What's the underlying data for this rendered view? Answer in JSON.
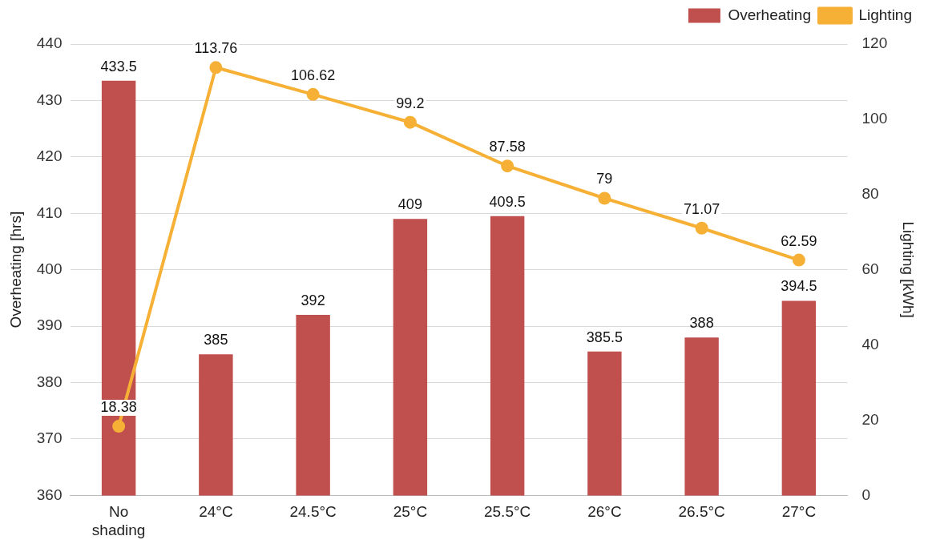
{
  "chart_data": {
    "type": "bar",
    "ylabel": "Overheating [hrs]",
    "y2label": "Lighting [kWh]",
    "categories": [
      "No shading",
      "24°C",
      "24.5°C",
      "25°C",
      "25.5°C",
      "26°C",
      "26.5°C",
      "27°C"
    ],
    "series": [
      {
        "name": "Overheating",
        "color": "#c0504d",
        "values": [
          433.5,
          385,
          392,
          409,
          409.5,
          385.5,
          388,
          394.5
        ]
      },
      {
        "name": "Lighting",
        "type": "line",
        "axis": "y2",
        "color": "#f5b035",
        "marker": "circle",
        "values": [
          18.38,
          113.76,
          106.62,
          99.2,
          87.58,
          79,
          71.07,
          62.59
        ]
      }
    ],
    "ylim": [
      360,
      440
    ],
    "yticks": [
      360,
      370,
      380,
      390,
      400,
      410,
      420,
      430,
      440
    ],
    "y2lim": [
      0,
      120
    ],
    "y2ticks": [
      0,
      20,
      40,
      60,
      80,
      100,
      120
    ],
    "grid": "y",
    "legend": "top right",
    "data_labels": true
  }
}
